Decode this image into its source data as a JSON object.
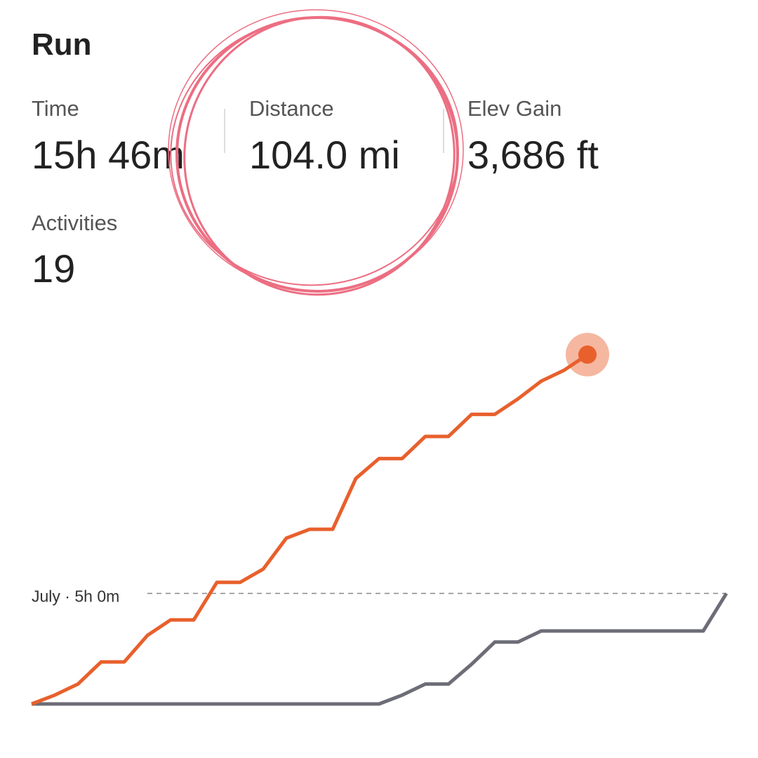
{
  "header": {
    "title": "Run"
  },
  "stats": [
    {
      "label": "Time",
      "value": "15h 46m"
    },
    {
      "label": "Distance",
      "value": "104.0 mi"
    },
    {
      "label": "Elev Gain",
      "value": "3,686 ft"
    },
    {
      "label": "Activities",
      "value": "19"
    }
  ],
  "chart_data": {
    "type": "line",
    "x": [
      1,
      2,
      3,
      4,
      5,
      6,
      7,
      8,
      9,
      10,
      11,
      12,
      13,
      14,
      15,
      16,
      17,
      18,
      19,
      20,
      21,
      22,
      23,
      24,
      25,
      26,
      27,
      28,
      29,
      30,
      31
    ],
    "xlim": [
      1,
      31
    ],
    "ylim": [
      0,
      16
    ],
    "series": [
      {
        "color": "#e8602c",
        "values": [
          0,
          0.4,
          0.9,
          1.9,
          1.9,
          3.1,
          3.8,
          3.8,
          5.5,
          5.5,
          6.1,
          7.5,
          7.9,
          7.9,
          10.2,
          11.1,
          11.1,
          12.1,
          12.1,
          13.1,
          13.1,
          13.8,
          14.6,
          15.1,
          15.8,
          null,
          null,
          null,
          null,
          null,
          null
        ]
      },
      {
        "color": "#6d6d78",
        "values": [
          0,
          0,
          0,
          0,
          0,
          0,
          0,
          0,
          0,
          0,
          0,
          0,
          0,
          0,
          0,
          0,
          0.4,
          0.9,
          0.9,
          1.8,
          2.8,
          2.8,
          3.3,
          3.3,
          3.3,
          3.3,
          3.3,
          3.3,
          3.3,
          3.3,
          5.0
        ]
      }
    ],
    "reference": {
      "label": "July · 5h 0m",
      "value": 5
    }
  }
}
